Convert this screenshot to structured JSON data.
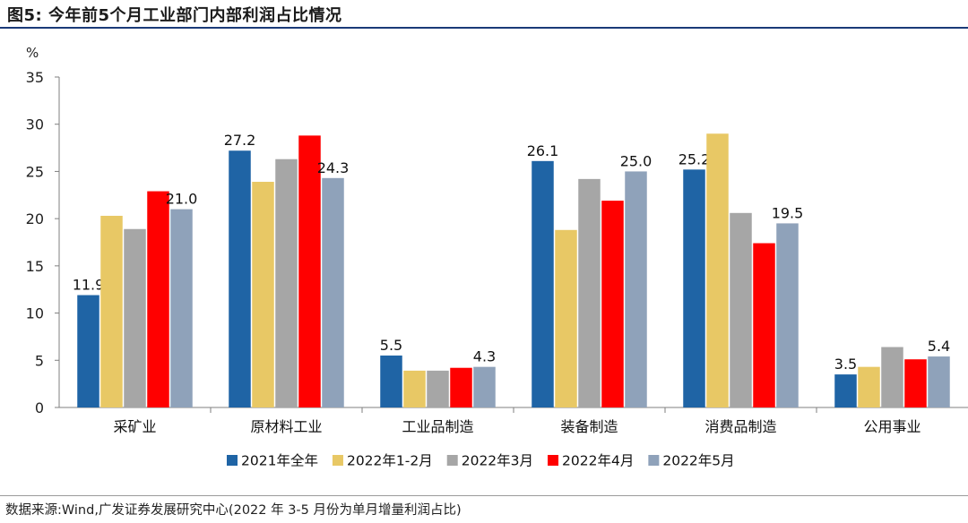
{
  "title": "图5:  今年前5个月工业部门内部利润占比情况",
  "source": "数据来源:Wind,广发证券发展研究中心(2022 年 3-5 月份为单月增量利润占比)",
  "chart_data": {
    "type": "bar",
    "ylabel": "%",
    "ylim": [
      0,
      35
    ],
    "yticks": [
      0,
      5,
      10,
      15,
      20,
      25,
      30,
      35
    ],
    "grid": false,
    "legend_position": "bottom",
    "categories": [
      "采矿业",
      "原材料工业",
      "工业品制造",
      "装备制造",
      "消费品制造",
      "公用事业"
    ],
    "series": [
      {
        "name": "2021年全年",
        "color": "#1f64a5",
        "values": [
          11.9,
          27.2,
          5.5,
          26.1,
          25.2,
          3.5
        ],
        "labels": [
          "11.9",
          "27.2",
          "5.5",
          "26.1",
          "25.2",
          "3.5"
        ]
      },
      {
        "name": "2022年1-2月",
        "color": "#e8c865",
        "values": [
          20.3,
          23.9,
          3.9,
          18.8,
          29.0,
          4.3
        ],
        "labels": []
      },
      {
        "name": "2022年3月",
        "color": "#a6a6a6",
        "values": [
          18.9,
          26.3,
          3.9,
          24.2,
          20.6,
          6.4
        ],
        "labels": []
      },
      {
        "name": "2022年4月",
        "color": "#ff0000",
        "values": [
          22.9,
          28.8,
          4.2,
          21.9,
          17.4,
          5.1
        ],
        "labels": []
      },
      {
        "name": "2022年5月",
        "color": "#8fa2ba",
        "values": [
          21.0,
          24.3,
          4.3,
          25.0,
          19.5,
          5.4
        ],
        "labels": [
          "21.0",
          "24.3",
          "4.3",
          "25.0",
          "19.5",
          "5.4"
        ]
      }
    ]
  }
}
